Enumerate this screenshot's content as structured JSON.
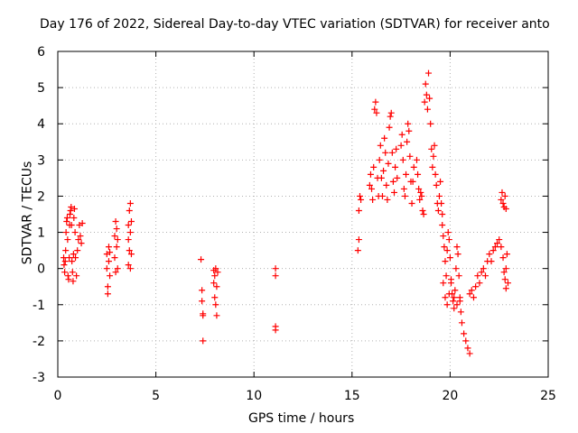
{
  "chart_data": {
    "type": "scatter",
    "title": "Day 176 of 2022, Sidereal Day-to-day VTEC variation (SDTVAR) for receiver anto",
    "xlabel": "GPS time / hours",
    "ylabel": "SDTVAR / TECUs",
    "xlim": [
      0,
      25
    ],
    "ylim": [
      -3,
      6
    ],
    "xticks": [
      "0",
      "5",
      "10",
      "15",
      "20",
      "25"
    ],
    "yticks": [
      "-3",
      "-2",
      "-1",
      "0",
      "1",
      "2",
      "3",
      "4",
      "5",
      "6"
    ],
    "grid": true,
    "marker": "+",
    "color": "#ff0000",
    "series": [
      {
        "name": "SDTVAR",
        "points": [
          [
            0.3,
            0.3
          ],
          [
            0.32,
            0.1
          ],
          [
            0.35,
            -0.1
          ],
          [
            0.38,
            0.2
          ],
          [
            0.4,
            0.5
          ],
          [
            0.42,
            1.0
          ],
          [
            0.45,
            1.3
          ],
          [
            0.48,
            1.4
          ],
          [
            0.5,
            0.8
          ],
          [
            0.52,
            -0.2
          ],
          [
            0.55,
            -0.3
          ],
          [
            0.58,
            0.3
          ],
          [
            0.6,
            1.2
          ],
          [
            0.62,
            1.5
          ],
          [
            0.65,
            1.6
          ],
          [
            0.68,
            1.7
          ],
          [
            0.7,
            1.2
          ],
          [
            0.72,
            0.2
          ],
          [
            0.75,
            -0.1
          ],
          [
            0.78,
            -0.35
          ],
          [
            0.8,
            0.4
          ],
          [
            0.82,
            1.4
          ],
          [
            0.85,
            1.65
          ],
          [
            0.88,
            1.0
          ],
          [
            0.9,
            0.3
          ],
          [
            0.95,
            -0.2
          ],
          [
            1.0,
            0.5
          ],
          [
            1.05,
            0.8
          ],
          [
            1.1,
            1.2
          ],
          [
            1.15,
            0.9
          ],
          [
            1.2,
            0.7
          ],
          [
            1.25,
            1.25
          ],
          [
            2.5,
            0.4
          ],
          [
            2.5,
            0.0
          ],
          [
            2.55,
            -0.5
          ],
          [
            2.55,
            -0.7
          ],
          [
            2.6,
            0.6
          ],
          [
            2.6,
            0.2
          ],
          [
            2.65,
            -0.2
          ],
          [
            2.65,
            0.45
          ],
          [
            2.9,
            0.9
          ],
          [
            2.9,
            0.3
          ],
          [
            2.95,
            -0.1
          ],
          [
            2.95,
            1.3
          ],
          [
            3.0,
            0.6
          ],
          [
            3.0,
            1.1
          ],
          [
            3.05,
            0.0
          ],
          [
            3.05,
            0.8
          ],
          [
            3.6,
            1.2
          ],
          [
            3.6,
            0.8
          ],
          [
            3.6,
            0.1
          ],
          [
            3.65,
            1.6
          ],
          [
            3.65,
            0.5
          ],
          [
            3.7,
            1.8
          ],
          [
            3.7,
            1.0
          ],
          [
            3.7,
            0.0
          ],
          [
            3.75,
            1.3
          ],
          [
            3.75,
            0.4
          ],
          [
            7.3,
            0.25
          ],
          [
            7.35,
            -0.6
          ],
          [
            7.35,
            -0.9
          ],
          [
            7.4,
            -1.3
          ],
          [
            7.4,
            -1.25
          ],
          [
            7.4,
            -2.0
          ],
          [
            7.95,
            -0.05
          ],
          [
            7.95,
            -0.4
          ],
          [
            8.0,
            -0.2
          ],
          [
            8.0,
            -0.8
          ],
          [
            8.05,
            -1.0
          ],
          [
            8.05,
            0.0
          ],
          [
            8.1,
            -1.3
          ],
          [
            8.1,
            -0.5
          ],
          [
            8.15,
            -0.1
          ],
          [
            11.1,
            0.0
          ],
          [
            11.1,
            -0.2
          ],
          [
            11.1,
            -1.6
          ],
          [
            11.1,
            -1.7
          ],
          [
            15.3,
            0.5
          ],
          [
            15.35,
            0.8
          ],
          [
            15.35,
            1.6
          ],
          [
            15.4,
            2.0
          ],
          [
            15.45,
            1.9
          ],
          [
            15.9,
            2.3
          ],
          [
            15.95,
            2.6
          ],
          [
            16.0,
            2.2
          ],
          [
            16.05,
            1.9
          ],
          [
            16.1,
            2.8
          ],
          [
            16.15,
            4.4
          ],
          [
            16.2,
            4.6
          ],
          [
            16.25,
            4.3
          ],
          [
            16.3,
            2.5
          ],
          [
            16.35,
            2.0
          ],
          [
            16.4,
            3.0
          ],
          [
            16.45,
            3.4
          ],
          [
            16.5,
            2.5
          ],
          [
            16.55,
            2.0
          ],
          [
            16.6,
            2.7
          ],
          [
            16.65,
            3.6
          ],
          [
            16.7,
            3.2
          ],
          [
            16.75,
            2.3
          ],
          [
            16.8,
            1.9
          ],
          [
            16.85,
            2.9
          ],
          [
            16.9,
            3.9
          ],
          [
            16.95,
            4.2
          ],
          [
            17.0,
            4.3
          ],
          [
            17.05,
            3.2
          ],
          [
            17.1,
            2.4
          ],
          [
            17.15,
            2.1
          ],
          [
            17.2,
            2.8
          ],
          [
            17.25,
            3.3
          ],
          [
            17.3,
            2.5
          ],
          [
            17.5,
            3.4
          ],
          [
            17.55,
            3.7
          ],
          [
            17.6,
            3.0
          ],
          [
            17.65,
            2.2
          ],
          [
            17.7,
            2.0
          ],
          [
            17.75,
            2.6
          ],
          [
            17.8,
            3.5
          ],
          [
            17.85,
            4.0
          ],
          [
            17.9,
            3.8
          ],
          [
            17.95,
            3.1
          ],
          [
            18.0,
            2.4
          ],
          [
            18.05,
            1.8
          ],
          [
            18.1,
            2.4
          ],
          [
            18.15,
            2.8
          ],
          [
            18.3,
            3.0
          ],
          [
            18.35,
            2.6
          ],
          [
            18.4,
            2.2
          ],
          [
            18.45,
            1.9
          ],
          [
            18.5,
            2.1
          ],
          [
            18.55,
            2.0
          ],
          [
            18.6,
            1.6
          ],
          [
            18.65,
            1.5
          ],
          [
            18.7,
            4.6
          ],
          [
            18.75,
            5.1
          ],
          [
            18.8,
            4.8
          ],
          [
            18.85,
            4.4
          ],
          [
            18.9,
            5.4
          ],
          [
            18.95,
            4.7
          ],
          [
            19.0,
            4.0
          ],
          [
            19.05,
            3.3
          ],
          [
            19.1,
            2.8
          ],
          [
            19.15,
            3.1
          ],
          [
            19.2,
            3.4
          ],
          [
            19.25,
            2.6
          ],
          [
            19.3,
            2.3
          ],
          [
            19.35,
            1.8
          ],
          [
            19.4,
            1.6
          ],
          [
            19.45,
            2.0
          ],
          [
            19.5,
            2.4
          ],
          [
            19.55,
            1.8
          ],
          [
            19.6,
            1.5
          ],
          [
            19.6,
            1.2
          ],
          [
            19.65,
            0.9
          ],
          [
            19.7,
            0.6
          ],
          [
            19.75,
            0.2
          ],
          [
            19.8,
            -0.2
          ],
          [
            19.85,
            0.5
          ],
          [
            19.9,
            1.0
          ],
          [
            19.95,
            0.8
          ],
          [
            20.0,
            0.3
          ],
          [
            20.05,
            -0.3
          ],
          [
            20.1,
            -0.7
          ],
          [
            20.15,
            -0.9
          ],
          [
            20.2,
            -1.1
          ],
          [
            20.25,
            -0.6
          ],
          [
            20.3,
            0.0
          ],
          [
            20.35,
            0.6
          ],
          [
            20.4,
            0.4
          ],
          [
            20.45,
            -0.2
          ],
          [
            20.5,
            -0.8
          ],
          [
            20.55,
            -1.2
          ],
          [
            20.6,
            -1.5
          ],
          [
            20.7,
            -1.8
          ],
          [
            20.8,
            -2.0
          ],
          [
            20.9,
            -2.2
          ],
          [
            21.0,
            -2.35
          ],
          [
            19.65,
            -0.4
          ],
          [
            19.75,
            -0.8
          ],
          [
            19.85,
            -1.0
          ],
          [
            19.95,
            -0.7
          ],
          [
            20.05,
            -0.4
          ],
          [
            20.2,
            -0.8
          ],
          [
            20.35,
            -1.0
          ],
          [
            20.5,
            -0.9
          ],
          [
            21.0,
            -0.7
          ],
          [
            21.1,
            -0.6
          ],
          [
            21.2,
            -0.8
          ],
          [
            21.3,
            -0.5
          ],
          [
            21.4,
            -0.2
          ],
          [
            21.5,
            -0.4
          ],
          [
            21.6,
            -0.1
          ],
          [
            21.7,
            0.0
          ],
          [
            21.8,
            -0.2
          ],
          [
            21.9,
            0.2
          ],
          [
            22.0,
            0.4
          ],
          [
            22.1,
            0.2
          ],
          [
            22.2,
            0.5
          ],
          [
            22.3,
            0.6
          ],
          [
            22.4,
            0.7
          ],
          [
            22.5,
            0.8
          ],
          [
            22.6,
            0.6
          ],
          [
            22.7,
            0.3
          ],
          [
            22.75,
            -0.1
          ],
          [
            22.8,
            -0.3
          ],
          [
            22.85,
            0.0
          ],
          [
            22.9,
            0.4
          ],
          [
            22.95,
            -0.4
          ],
          [
            22.85,
            -0.55
          ],
          [
            22.6,
            1.9
          ],
          [
            22.65,
            2.1
          ],
          [
            22.7,
            1.8
          ],
          [
            22.75,
            1.7
          ],
          [
            22.8,
            2.0
          ],
          [
            22.85,
            1.65
          ]
        ]
      }
    ]
  }
}
